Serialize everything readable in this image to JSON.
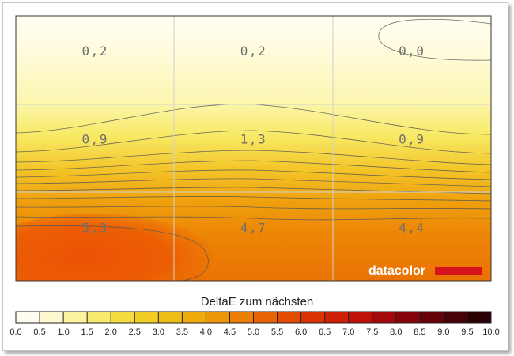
{
  "chart_data": {
    "type": "heatmap",
    "grid": {
      "rows": 3,
      "cols": 3,
      "gridlines": true
    },
    "values": [
      [
        0.2,
        0.2,
        0.0
      ],
      [
        0.9,
        1.3,
        0.9
      ],
      [
        5.3,
        4.7,
        4.4
      ]
    ],
    "value_labels": [
      [
        "0,2",
        "0,2",
        "0,0"
      ],
      [
        "0,9",
        "1,3",
        "0,9"
      ],
      [
        "5,3",
        "4,7",
        "4,4"
      ]
    ],
    "colorbar": {
      "title": "DeltaE zum nächsten",
      "ticks": [
        "0.0",
        "0.5",
        "1.0",
        "1.5",
        "2.0",
        "2.5",
        "3.0",
        "3.5",
        "4.0",
        "4.5",
        "5.0",
        "5.5",
        "6.0",
        "6.5",
        "7.0",
        "7.5",
        "8.0",
        "8.5",
        "9.0",
        "9.5",
        "10.0"
      ],
      "colors": [
        "#fefdf0",
        "#fdf9cf",
        "#fbf3a0",
        "#f7e96b",
        "#f4dc40",
        "#f2cd25",
        "#f0bd18",
        "#efab0d",
        "#ed9608",
        "#eb7f05",
        "#e86404",
        "#e34c05",
        "#dc3305",
        "#cf1f07",
        "#bd1109",
        "#a3080a",
        "#86040b",
        "#66020a",
        "#470208",
        "#2a0105"
      ]
    },
    "logo": "datacolor",
    "colors": {
      "logo_bar": "#d8121b",
      "gridline": "#d0d0d0",
      "contour": "#555555"
    }
  }
}
